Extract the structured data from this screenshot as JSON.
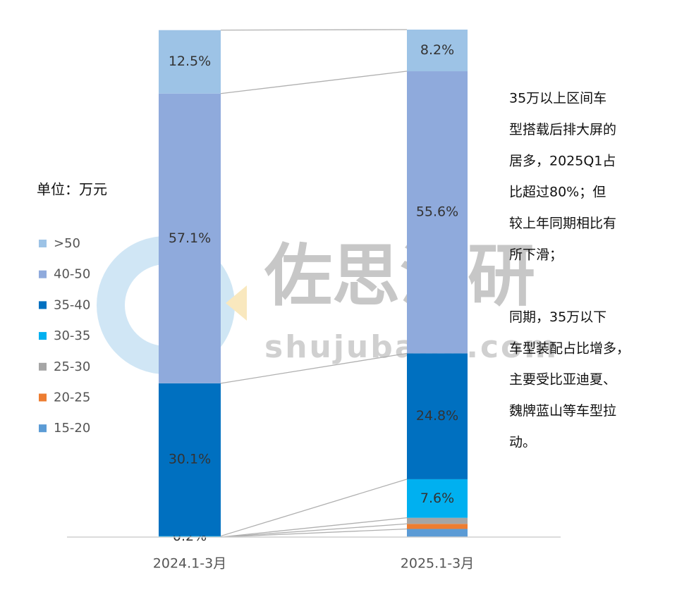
{
  "chart_data": {
    "type": "stacked_bar_100",
    "categories": [
      "2024.1-3月",
      "2025.1-3月"
    ],
    "ylim": [
      0,
      100
    ],
    "legend_title": "单位：万元",
    "series": [
      {
        "name": "15-20",
        "color": "#5b9bd5",
        "values": [
          0,
          1.6
        ],
        "value_labels": [
          null,
          null
        ]
      },
      {
        "name": "20-25",
        "color": "#ed7d31",
        "values": [
          0,
          1.0
        ],
        "value_labels": [
          null,
          null
        ]
      },
      {
        "name": "25-30",
        "color": "#a5a5a5",
        "values": [
          0,
          1.2
        ],
        "value_labels": [
          null,
          null
        ]
      },
      {
        "name": "30-35",
        "color": "#00b0f0",
        "values": [
          0.2,
          7.6
        ],
        "value_labels": [
          "0.2%",
          "7.6%"
        ]
      },
      {
        "name": "35-40",
        "color": "#0070c0",
        "values": [
          30.1,
          24.8
        ],
        "value_labels": [
          "30.1%",
          "24.8%"
        ]
      },
      {
        "name": "40-50",
        "color": "#8faadc",
        "values": [
          57.1,
          55.6
        ],
        "value_labels": [
          "57.1%",
          "55.6%"
        ]
      },
      {
        "name": ">50",
        "color": "#9dc3e6",
        "values": [
          12.5,
          8.2
        ],
        "value_labels": [
          "12.5%",
          "8.2%"
        ]
      }
    ],
    "notes": [
      [
        "35万以上区间车",
        "型搭载后排大屏的",
        "居多，2025Q1占",
        "比超过80%；但",
        "较上年同期相比有",
        "所下滑；"
      ],
      [
        "同期，35万以下",
        "车型装配占比增多，",
        "主要受比亚迪夏、",
        "魏牌蓝山等车型拉",
        "动。"
      ]
    ],
    "watermark": {
      "title": "佐思汽研",
      "site": "shujubang.com"
    }
  }
}
